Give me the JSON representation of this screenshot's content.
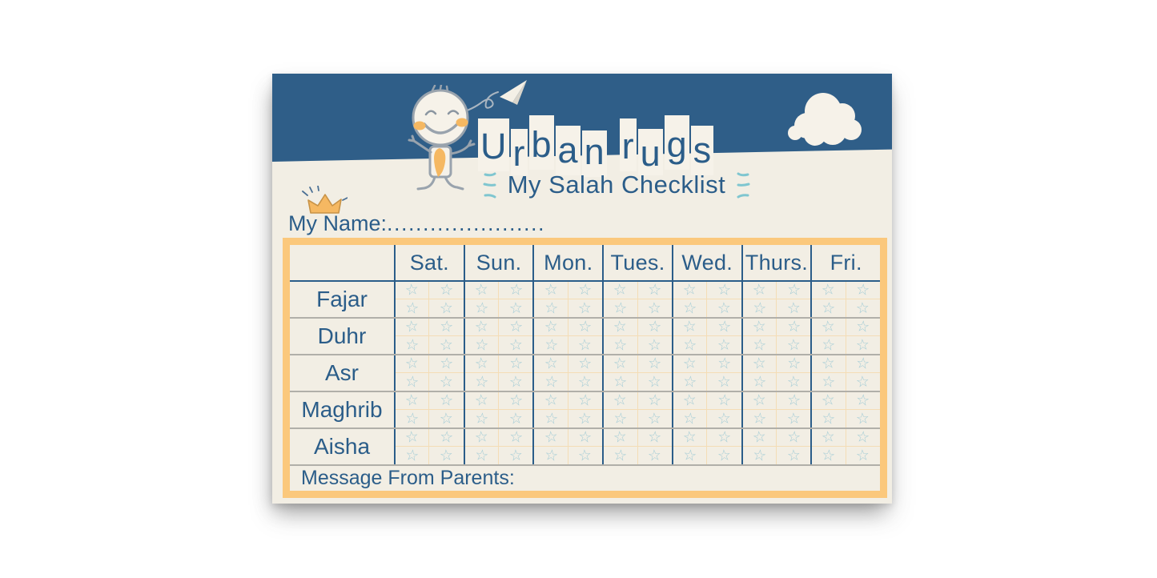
{
  "poster": {
    "brand": "Urban rugs",
    "subtitle": "My Salah Checklist",
    "name_field": {
      "label": "My Name:",
      "dots": "......................"
    },
    "table": {
      "day_headers": [
        "Sat.",
        "Sun.",
        "Mon.",
        "Tues.",
        "Wed.",
        "Thurs.",
        "Fri."
      ],
      "prayers": [
        "Fajar",
        "Duhr",
        "Asr",
        "Maghrib",
        "Aisha"
      ],
      "stars_per_day_cell": 4,
      "star_glyph": "☆"
    },
    "message_label": "Message From Parents:",
    "colors": {
      "header_blue": "#2f5e88",
      "text_navy": "#2b5d89",
      "poster_cream": "#f2eee4",
      "tile_cream": "#f6f2e9",
      "table_border_orange": "#fbc87c",
      "cell_grid_orange": "#f4ddb6",
      "star_outline_blue": "#a6cdd6",
      "row_divider_gray": "#b1afa9",
      "doodle_orange": "#f5b862",
      "accent_teal": "#7fc6d0",
      "doodle_line_gray": "#99a3ad"
    }
  }
}
